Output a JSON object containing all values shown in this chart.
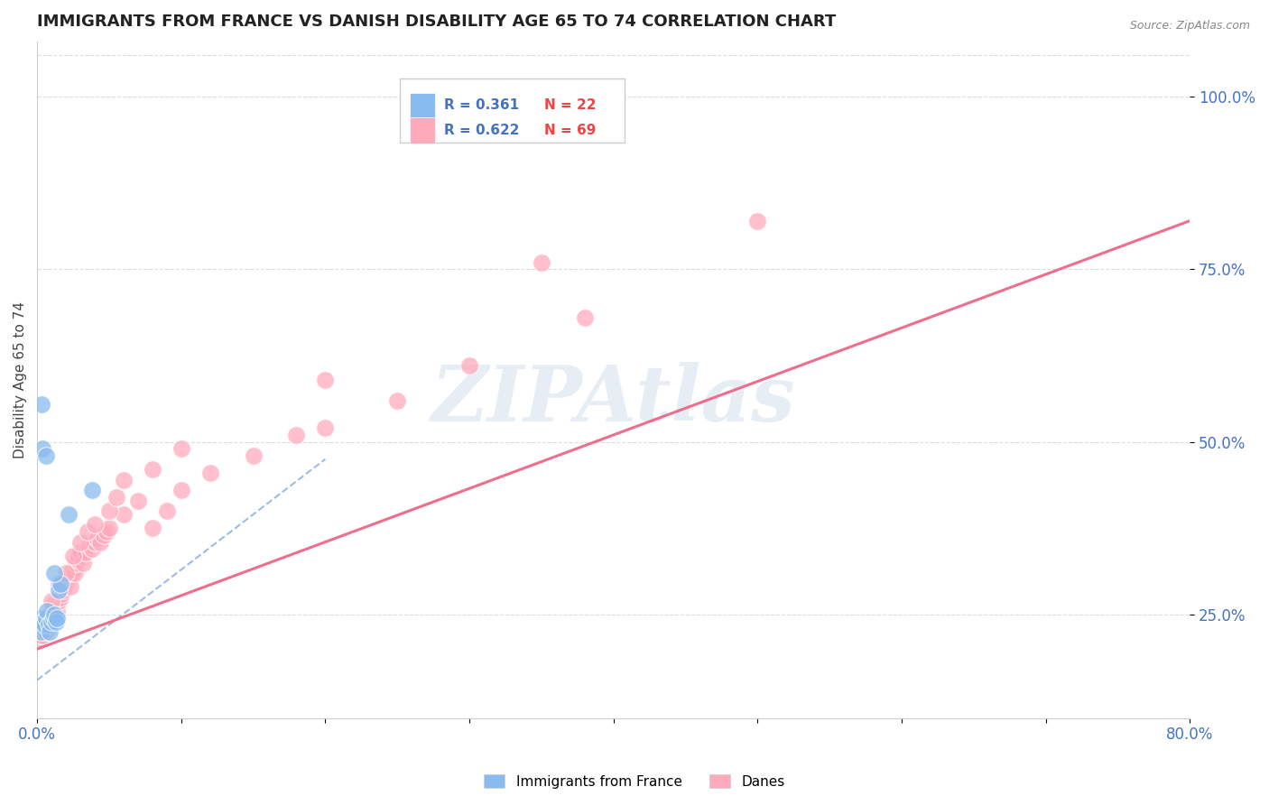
{
  "title": "IMMIGRANTS FROM FRANCE VS DANISH DISABILITY AGE 65 TO 74 CORRELATION CHART",
  "source": "Source: ZipAtlas.com",
  "ylabel": "Disability Age 65 to 74",
  "xlim": [
    0.0,
    0.8
  ],
  "ylim": [
    0.1,
    1.08
  ],
  "xticks": [
    0.0,
    0.1,
    0.2,
    0.3,
    0.4,
    0.5,
    0.6,
    0.7,
    0.8
  ],
  "ytick_positions": [
    0.25,
    0.5,
    0.75,
    1.0
  ],
  "ytick_labels": [
    "25.0%",
    "50.0%",
    "75.0%",
    "100.0%"
  ],
  "watermark": "ZIPAtlas",
  "blue_color": "#88bbee",
  "pink_color": "#ffaabb",
  "blue_line_color": "#88aadd",
  "pink_line_color": "#ee6688",
  "blue_trend_x": [
    0.0,
    0.2
  ],
  "blue_trend_y": [
    0.155,
    0.475
  ],
  "pink_trend_x": [
    0.0,
    0.8
  ],
  "pink_trend_y": [
    0.2,
    0.82
  ],
  "grid_color": "#dddddd",
  "background_color": "#ffffff",
  "title_color": "#222222",
  "axis_label_color": "#444444",
  "tick_label_color": "#4472c4",
  "watermark_color": "#c8d8ea",
  "watermark_alpha": 0.45,
  "legend_r_color": "#4472c4",
  "legend_n_color": "#ee4444",
  "blue_x": [
    0.001,
    0.002,
    0.003,
    0.004,
    0.005,
    0.006,
    0.007,
    0.008,
    0.009,
    0.01,
    0.011,
    0.012,
    0.013,
    0.014,
    0.015,
    0.016,
    0.003,
    0.004,
    0.006,
    0.012,
    0.022,
    0.038
  ],
  "blue_y": [
    0.245,
    0.235,
    0.225,
    0.24,
    0.235,
    0.245,
    0.255,
    0.235,
    0.225,
    0.24,
    0.245,
    0.25,
    0.24,
    0.245,
    0.285,
    0.295,
    0.555,
    0.49,
    0.48,
    0.31,
    0.395,
    0.43
  ],
  "pink_x": [
    0.001,
    0.002,
    0.003,
    0.004,
    0.005,
    0.006,
    0.007,
    0.008,
    0.009,
    0.01,
    0.011,
    0.012,
    0.013,
    0.014,
    0.015,
    0.016,
    0.017,
    0.018,
    0.019,
    0.02,
    0.021,
    0.022,
    0.023,
    0.024,
    0.025,
    0.026,
    0.027,
    0.028,
    0.029,
    0.03,
    0.032,
    0.034,
    0.036,
    0.038,
    0.04,
    0.042,
    0.044,
    0.046,
    0.048,
    0.05,
    0.06,
    0.07,
    0.08,
    0.09,
    0.1,
    0.12,
    0.15,
    0.18,
    0.2,
    0.25,
    0.3,
    0.38,
    0.5,
    0.005,
    0.008,
    0.01,
    0.015,
    0.02,
    0.025,
    0.03,
    0.035,
    0.04,
    0.05,
    0.055,
    0.06,
    0.08,
    0.1,
    0.2,
    0.35
  ],
  "pink_y": [
    0.215,
    0.22,
    0.225,
    0.22,
    0.23,
    0.225,
    0.245,
    0.24,
    0.25,
    0.255,
    0.26,
    0.265,
    0.25,
    0.255,
    0.27,
    0.275,
    0.28,
    0.285,
    0.29,
    0.295,
    0.3,
    0.305,
    0.29,
    0.31,
    0.315,
    0.31,
    0.325,
    0.33,
    0.335,
    0.34,
    0.325,
    0.34,
    0.35,
    0.345,
    0.355,
    0.36,
    0.355,
    0.365,
    0.37,
    0.375,
    0.395,
    0.415,
    0.375,
    0.4,
    0.43,
    0.455,
    0.48,
    0.51,
    0.52,
    0.56,
    0.61,
    0.68,
    0.82,
    0.235,
    0.24,
    0.27,
    0.295,
    0.31,
    0.335,
    0.355,
    0.37,
    0.38,
    0.4,
    0.42,
    0.445,
    0.46,
    0.49,
    0.59,
    0.76
  ]
}
